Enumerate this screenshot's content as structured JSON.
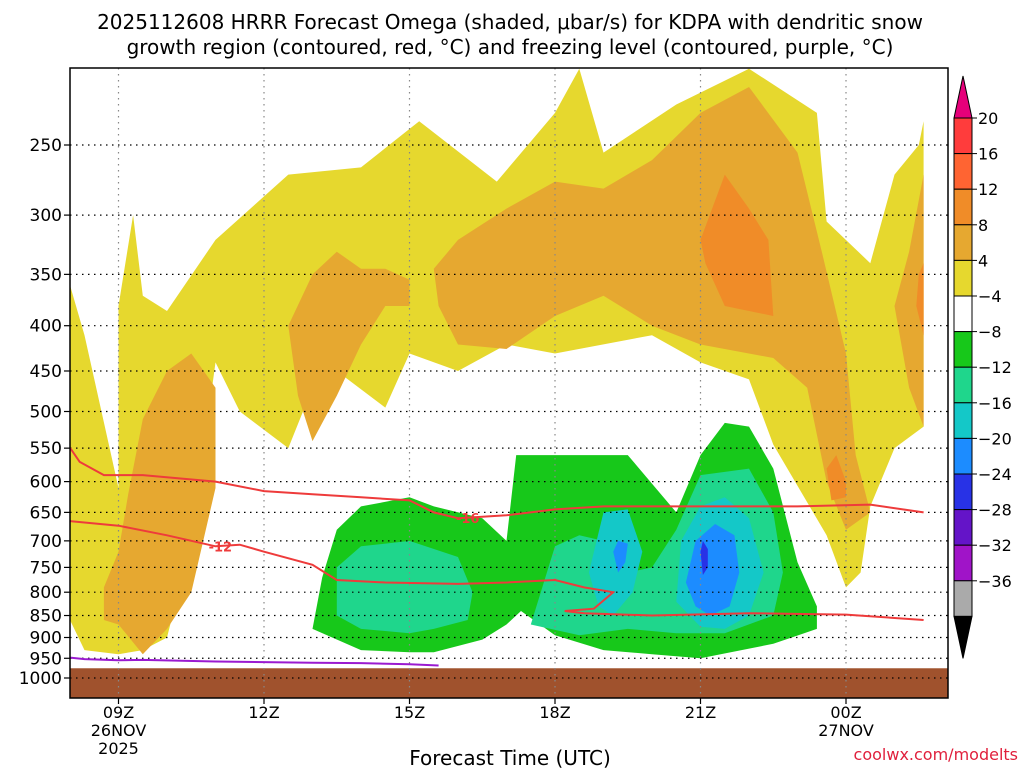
{
  "chart_data": {
    "type": "contour",
    "title_line1": "2025112608 HRRR Forecast Omega (shaded, μbar/s) for KDPA with dendritic snow",
    "title_line2": "growth region (contoured, red, °C) and freezing level (contoured, purple, °C)",
    "xlabel": "Forecast Time (UTC)",
    "credit": "coolwx.com/modelts",
    "x_ticks": [
      {
        "label": "09Z",
        "date": "26NOV",
        "year": "2025",
        "hours": 1
      },
      {
        "label": "12Z",
        "date": "",
        "year": "",
        "hours": 4
      },
      {
        "label": "15Z",
        "date": "",
        "year": "",
        "hours": 7
      },
      {
        "label": "18Z",
        "date": "",
        "year": "",
        "hours": 10
      },
      {
        "label": "21Z",
        "date": "",
        "year": "",
        "hours": 13
      },
      {
        "label": "00Z",
        "date": "27NOV",
        "year": "",
        "hours": 16
      }
    ],
    "x_range_hours": [
      0,
      17.6
    ],
    "y_ticks": [
      250,
      300,
      350,
      400,
      450,
      500,
      550,
      600,
      650,
      700,
      750,
      800,
      850,
      900,
      950,
      1000
    ],
    "y_range_mb": [
      200,
      1025
    ],
    "colorbar": {
      "labels": [
        "20",
        "16",
        "12",
        "8",
        "4",
        "−4",
        "−8",
        "−12",
        "−16",
        "−20",
        "−24",
        "−28",
        "−32",
        "−36"
      ],
      "colors": [
        "#ff3c3c",
        "#ff6432",
        "#f08c28",
        "#e6a830",
        "#e6d82e",
        "#ffffff",
        "#17c81a",
        "#1fd68c",
        "#14c8c8",
        "#1c8cff",
        "#2832e6",
        "#6414c8",
        "#a014c8",
        "#aaaaaa"
      ],
      "top_color": "#e6007a",
      "bottom_color": "#000000"
    },
    "omega_regions": [
      {
        "level": "4 to 8",
        "color": "#e6d82e",
        "pts": [
          [
            0.3,
            930
          ],
          [
            0,
            860
          ],
          [
            0,
            360
          ],
          [
            0.3,
            410
          ],
          [
            1,
            610
          ],
          [
            1,
            380
          ],
          [
            1.3,
            300
          ],
          [
            1.5,
            370
          ],
          [
            2,
            385
          ],
          [
            3,
            320
          ],
          [
            4.5,
            270
          ],
          [
            6,
            265
          ],
          [
            7.2,
            235
          ],
          [
            8.8,
            275
          ],
          [
            10,
            230
          ],
          [
            10.5,
            205
          ],
          [
            11,
            255
          ],
          [
            12.5,
            225
          ],
          [
            14,
            205
          ],
          [
            15.4,
            230
          ],
          [
            15.6,
            305
          ],
          [
            16.5,
            340
          ],
          [
            17,
            270
          ],
          [
            17.5,
            250
          ],
          [
            17.6,
            235
          ],
          [
            17.6,
            520
          ],
          [
            17,
            550
          ],
          [
            16.5,
            640
          ],
          [
            16.3,
            760
          ],
          [
            16,
            790
          ],
          [
            15.6,
            690
          ],
          [
            14.5,
            545
          ],
          [
            14,
            460
          ],
          [
            13,
            440
          ],
          [
            12,
            410
          ],
          [
            10,
            430
          ],
          [
            9,
            420
          ],
          [
            8,
            450
          ],
          [
            7,
            430
          ],
          [
            6.5,
            495
          ],
          [
            5.5,
            450
          ],
          [
            5,
            470
          ],
          [
            4.5,
            550
          ],
          [
            3.5,
            500
          ],
          [
            3,
            440
          ],
          [
            2.5,
            700
          ],
          [
            2,
            900
          ],
          [
            1.5,
            930
          ],
          [
            1,
            940
          ]
        ]
      },
      {
        "level": "8 to 12",
        "color": "#e6a830",
        "pts": [
          [
            1,
            870
          ],
          [
            1.5,
            940
          ],
          [
            2,
            880
          ],
          [
            2.5,
            800
          ],
          [
            3,
            610
          ],
          [
            3,
            470
          ],
          [
            2.5,
            430
          ],
          [
            2,
            450
          ],
          [
            1.5,
            510
          ],
          [
            1.2,
            620
          ],
          [
            1,
            720
          ],
          [
            0.7,
            790
          ],
          [
            0.7,
            860
          ]
        ]
      },
      {
        "level": "8 to 12",
        "color": "#e6a830",
        "pts": [
          [
            5,
            540
          ],
          [
            5.5,
            480
          ],
          [
            6,
            420
          ],
          [
            6.5,
            380
          ],
          [
            7,
            380
          ],
          [
            7,
            355
          ],
          [
            6.5,
            345
          ],
          [
            6,
            345
          ],
          [
            5.5,
            330
          ],
          [
            5,
            350
          ],
          [
            4.5,
            400
          ],
          [
            4.7,
            480
          ]
        ]
      },
      {
        "level": "8 to 12",
        "color": "#e6a830",
        "pts": [
          [
            7.5,
            345
          ],
          [
            8,
            320
          ],
          [
            9,
            295
          ],
          [
            10,
            275
          ],
          [
            11,
            280
          ],
          [
            12,
            260
          ],
          [
            13,
            230
          ],
          [
            14,
            215
          ],
          [
            15,
            255
          ],
          [
            15.5,
            330
          ],
          [
            16,
            430
          ],
          [
            16.2,
            560
          ],
          [
            16.5,
            650
          ],
          [
            16,
            680
          ],
          [
            15.6,
            600
          ],
          [
            15.2,
            470
          ],
          [
            14.5,
            435
          ],
          [
            13,
            420
          ],
          [
            12,
            400
          ],
          [
            11,
            370
          ],
          [
            10,
            390
          ],
          [
            9,
            425
          ],
          [
            8,
            420
          ],
          [
            7.6,
            380
          ]
        ]
      },
      {
        "level": "8 to 12",
        "color": "#e6a830",
        "pts": [
          [
            17.6,
            270
          ],
          [
            17.3,
            330
          ],
          [
            17,
            380
          ],
          [
            17.3,
            470
          ],
          [
            17.6,
            520
          ]
        ]
      },
      {
        "level": "12 to 16",
        "color": "#f08c28",
        "pts": [
          [
            13,
            320
          ],
          [
            13.5,
            270
          ],
          [
            14,
            295
          ],
          [
            14.4,
            320
          ],
          [
            14.5,
            390
          ],
          [
            13.5,
            380
          ],
          [
            13.1,
            340
          ]
        ]
      },
      {
        "level": "12 to 16",
        "color": "#f08c28",
        "pts": [
          [
            15.6,
            580
          ],
          [
            15.8,
            560
          ],
          [
            16,
            600
          ],
          [
            16,
            625
          ],
          [
            15.7,
            630
          ]
        ]
      },
      {
        "level": "12 to 16",
        "color": "#f08c28",
        "pts": [
          [
            17.5,
            350
          ],
          [
            17.6,
            340
          ],
          [
            17.6,
            410
          ],
          [
            17.45,
            380
          ]
        ]
      },
      {
        "level": "-8 to -4",
        "color": "#17c81a",
        "pts": [
          [
            5,
            880
          ],
          [
            5.2,
            770
          ],
          [
            5.5,
            680
          ],
          [
            6,
            640
          ],
          [
            7,
            625
          ],
          [
            7.5,
            640
          ],
          [
            8.5,
            660
          ],
          [
            9,
            700
          ],
          [
            9.2,
            560
          ],
          [
            10,
            560
          ],
          [
            11.5,
            560
          ],
          [
            12.5,
            650
          ],
          [
            13,
            560
          ],
          [
            13.5,
            515
          ],
          [
            14,
            520
          ],
          [
            14.5,
            580
          ],
          [
            15,
            740
          ],
          [
            15.4,
            830
          ],
          [
            15.4,
            880
          ],
          [
            14.5,
            915
          ],
          [
            13,
            950
          ],
          [
            12,
            940
          ],
          [
            11,
            930
          ],
          [
            10,
            895
          ],
          [
            9.3,
            840
          ],
          [
            9,
            870
          ],
          [
            8.5,
            905
          ],
          [
            7.5,
            935
          ],
          [
            7,
            935
          ],
          [
            6,
            930
          ]
        ]
      },
      {
        "level": "-12 to -8",
        "color": "#1fd68c",
        "pts": [
          [
            5.5,
            850
          ],
          [
            5.5,
            750
          ],
          [
            6,
            710
          ],
          [
            7,
            700
          ],
          [
            8,
            730
          ],
          [
            8.3,
            800
          ],
          [
            8.2,
            860
          ],
          [
            7.5,
            880
          ],
          [
            7,
            890
          ],
          [
            6,
            880
          ]
        ]
      },
      {
        "level": "-12 to -8",
        "color": "#1fd68c",
        "pts": [
          [
            9.5,
            870
          ],
          [
            10,
            710
          ],
          [
            10.5,
            690
          ],
          [
            11,
            700
          ],
          [
            11.5,
            760
          ],
          [
            12,
            750
          ],
          [
            12.5,
            680
          ],
          [
            13,
            590
          ],
          [
            14,
            580
          ],
          [
            14.5,
            650
          ],
          [
            14.7,
            760
          ],
          [
            14.5,
            850
          ],
          [
            13.5,
            890
          ],
          [
            12.5,
            890
          ],
          [
            11.5,
            880
          ],
          [
            10.5,
            895
          ]
        ]
      },
      {
        "level": "-16 to -12",
        "color": "#14c8c8",
        "pts": [
          [
            10.7,
            760
          ],
          [
            11,
            650
          ],
          [
            11.5,
            645
          ],
          [
            11.8,
            720
          ],
          [
            11.6,
            800
          ],
          [
            11.2,
            850
          ],
          [
            10.9,
            830
          ]
        ]
      },
      {
        "level": "-16 to -12",
        "color": "#14c8c8",
        "pts": [
          [
            12.5,
            820
          ],
          [
            12.6,
            700
          ],
          [
            13,
            640
          ],
          [
            13.5,
            625
          ],
          [
            14,
            660
          ],
          [
            14.3,
            760
          ],
          [
            14,
            850
          ],
          [
            13.5,
            880
          ],
          [
            13,
            875
          ]
        ]
      },
      {
        "level": "-20 to -16",
        "color": "#1c8cff",
        "pts": [
          [
            11.2,
            720
          ],
          [
            11.3,
            700
          ],
          [
            11.5,
            705
          ],
          [
            11.45,
            740
          ],
          [
            11.3,
            760
          ]
        ]
      },
      {
        "level": "-20 to -16",
        "color": "#1c8cff",
        "pts": [
          [
            12.7,
            780
          ],
          [
            12.9,
            700
          ],
          [
            13.3,
            670
          ],
          [
            13.7,
            690
          ],
          [
            13.8,
            760
          ],
          [
            13.6,
            830
          ],
          [
            13.2,
            850
          ],
          [
            12.9,
            830
          ]
        ]
      },
      {
        "level": "-24 to -20",
        "color": "#2832e6",
        "pts": [
          [
            13,
            720
          ],
          [
            13.05,
            700
          ],
          [
            13.15,
            715
          ],
          [
            13.15,
            750
          ],
          [
            13.05,
            765
          ]
        ]
      }
    ],
    "ground": {
      "from_mb": 975,
      "color": "#a0522d"
    },
    "red_contours": [
      {
        "label": "-16",
        "label_at": [
          8.2,
          660
        ],
        "pts": [
          [
            -0.3,
            520
          ],
          [
            0.2,
            570
          ],
          [
            0.7,
            590
          ],
          [
            1.5,
            590
          ],
          [
            3,
            600
          ],
          [
            4,
            615
          ],
          [
            5,
            620
          ],
          [
            6,
            625
          ],
          [
            7,
            630
          ],
          [
            7.5,
            650
          ],
          [
            8,
            660
          ],
          [
            9,
            655
          ],
          [
            10,
            645
          ],
          [
            11,
            640
          ],
          [
            13,
            640
          ],
          [
            15,
            640
          ],
          [
            16.5,
            637
          ],
          [
            17.6,
            650
          ]
        ]
      },
      {
        "label": "-12",
        "label_at": [
          3.1,
          710
        ],
        "pts": [
          [
            -0.3,
            670
          ],
          [
            0,
            665
          ],
          [
            1,
            673
          ],
          [
            2,
            690
          ],
          [
            3,
            710
          ],
          [
            3.5,
            707
          ],
          [
            4,
            720
          ],
          [
            5,
            745
          ],
          [
            5.5,
            775
          ],
          [
            6.5,
            780
          ],
          [
            8,
            783
          ],
          [
            9,
            780
          ],
          [
            10,
            775
          ],
          [
            10.6,
            790
          ],
          [
            11.2,
            800
          ],
          [
            10.8,
            835
          ],
          [
            10.2,
            840
          ],
          [
            10.6,
            845
          ],
          [
            12,
            850
          ],
          [
            14,
            845
          ],
          [
            16,
            848
          ],
          [
            17.6,
            860
          ]
        ]
      }
    ],
    "purple_contours": [
      {
        "pts": [
          [
            -0.3,
            945
          ],
          [
            0.3,
            952
          ],
          [
            1,
            955
          ],
          [
            1.5,
            954
          ],
          [
            3,
            958
          ],
          [
            5,
            961
          ],
          [
            6,
            962
          ],
          [
            7,
            965
          ],
          [
            7.6,
            968
          ]
        ]
      }
    ]
  }
}
